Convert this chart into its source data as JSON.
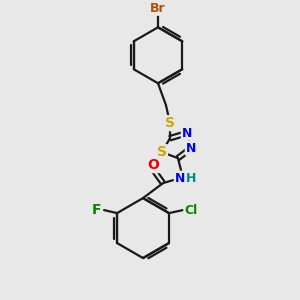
{
  "bg_color": "#e8e8e8",
  "bond_color": "#1a1a1a",
  "atom_colors": {
    "Br": "#b05000",
    "S": "#ccaa00",
    "N": "#0000ee",
    "O": "#ee0000",
    "F": "#008800",
    "Cl": "#008800",
    "H": "#008888",
    "C": "#1a1a1a"
  },
  "figsize": [
    3.0,
    3.0
  ],
  "dpi": 100
}
